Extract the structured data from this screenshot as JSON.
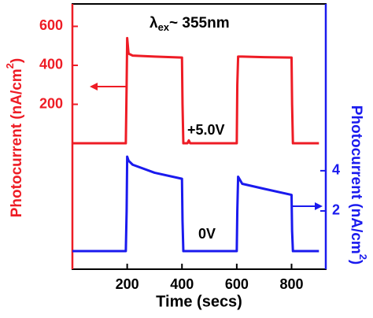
{
  "chart_data": {
    "type": "line",
    "annotations": {
      "excitation": {
        "symbol": "λ",
        "subscript": "ex",
        "text": "~ 355nm"
      },
      "bias_high": "+5.0V",
      "bias_zero": "0V"
    },
    "xlabel": "Time (secs)",
    "ylabel": {
      "text": "Photocurrent (nA/cm",
      "superscript": "2",
      "close": ")"
    },
    "y2label": {
      "text": "Photocurrent (nA/cm",
      "superscript": "2",
      "close": ")"
    },
    "x": [
      0,
      195,
      198,
      200,
      205,
      220,
      300,
      400,
      402,
      405,
      420,
      425,
      430,
      600,
      602,
      605,
      620,
      700,
      800,
      802,
      805,
      900
    ],
    "series": [
      {
        "name": "+5.0V",
        "color": "#ee1c25",
        "axis": "y",
        "values": [
          0,
          0,
          300,
          540,
          460,
          450,
          445,
          440,
          200,
          0,
          0,
          15,
          0,
          0,
          300,
          445,
          445,
          442,
          440,
          200,
          0,
          0
        ]
      },
      {
        "name": "0V",
        "color": "#1a1aee",
        "axis": "y2",
        "values": [
          0,
          0,
          2,
          4.7,
          4.5,
          4.3,
          3.9,
          3.6,
          1.5,
          0,
          0,
          0,
          0,
          0,
          2,
          3.7,
          3.35,
          3.1,
          2.8,
          1,
          0,
          0
        ]
      }
    ],
    "xlim": [
      0,
      925
    ],
    "xticks": [
      200,
      400,
      600,
      800
    ],
    "ylim": [
      -646,
      715
    ],
    "yticks": [
      200,
      400,
      600
    ],
    "y2lim": [
      -0.9,
      12.3
    ],
    "y2ticks": [
      2,
      4
    ]
  }
}
